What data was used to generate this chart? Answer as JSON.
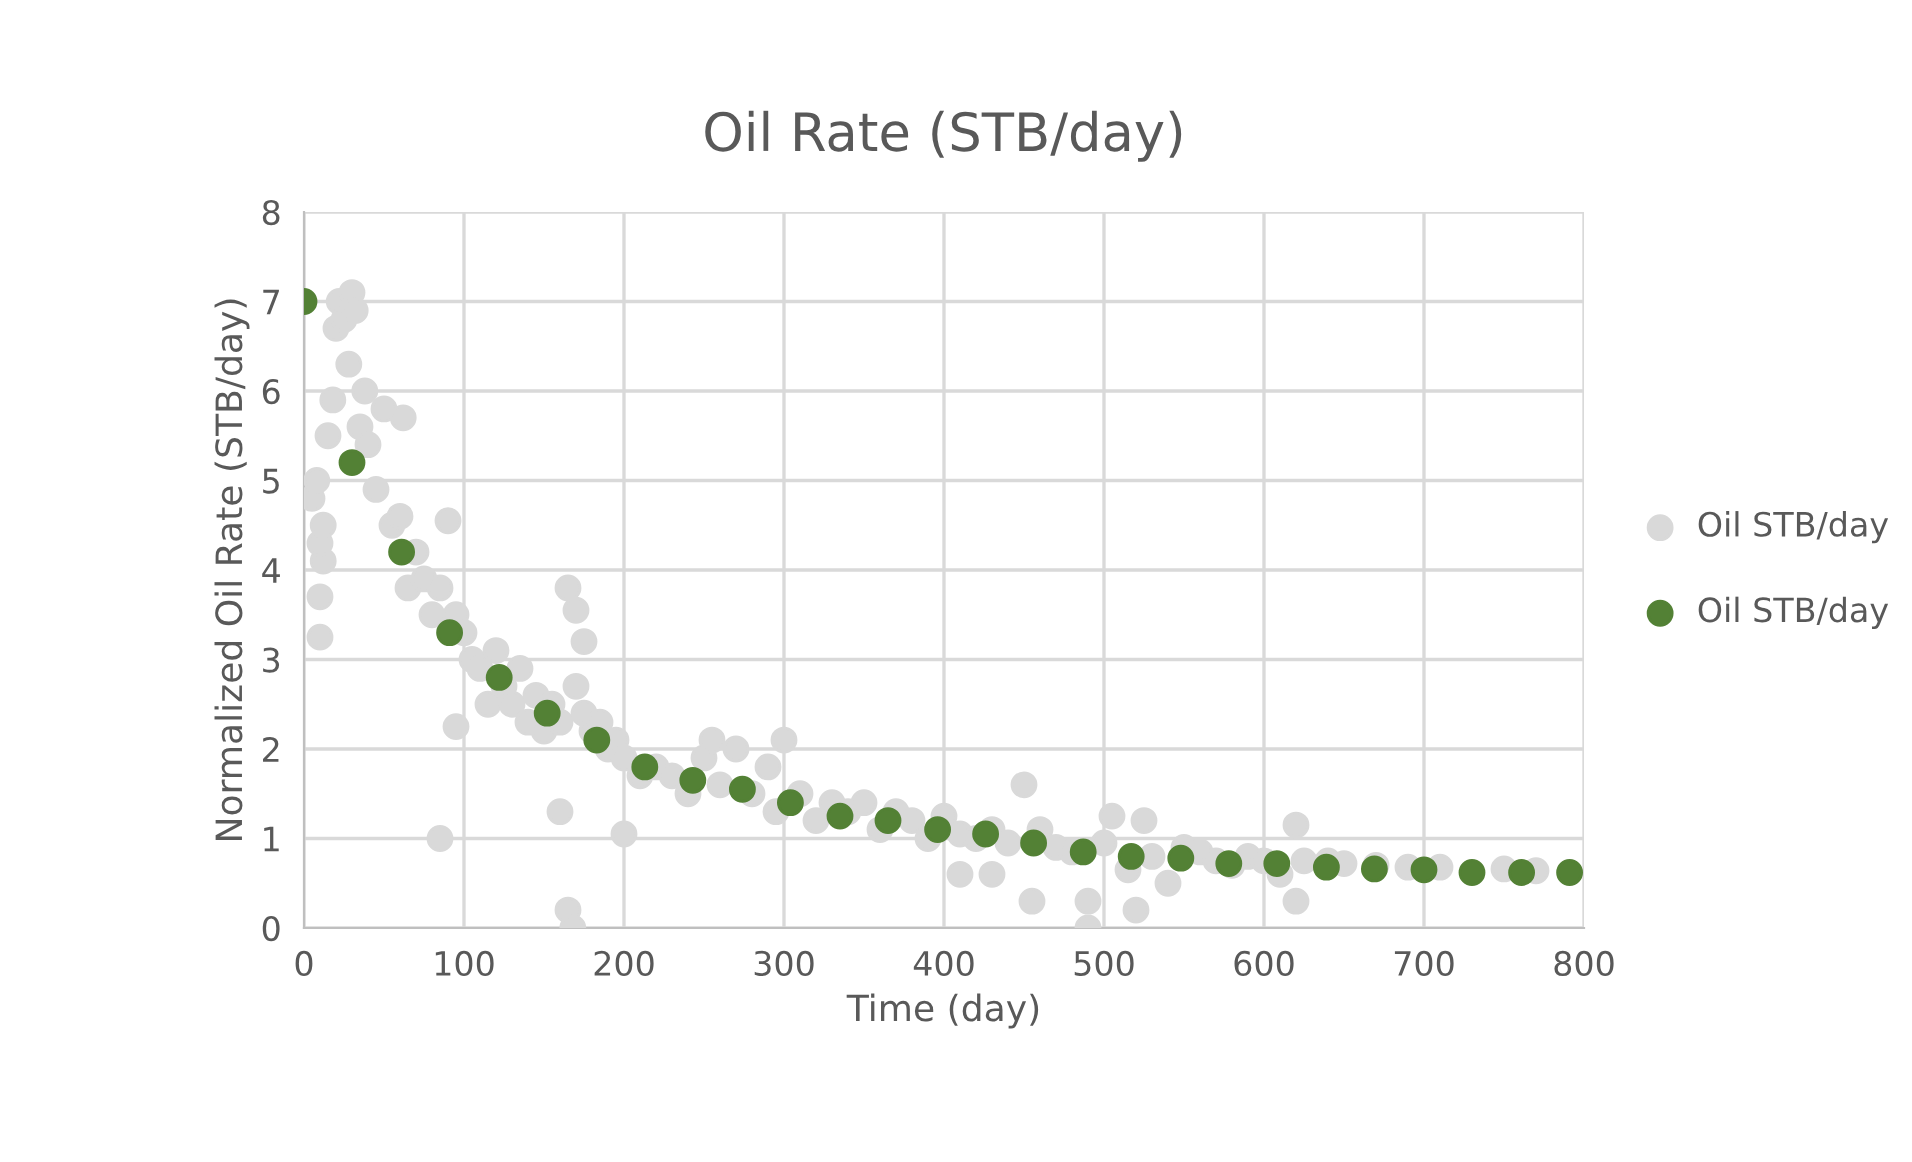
{
  "chart_data": {
    "type": "scatter",
    "title": "Oil Rate (STB/day)",
    "xlabel": "Time (day)",
    "ylabel": "Normalized Oil Rate (STB/day)",
    "xlim": [
      0,
      800
    ],
    "xticks": [
      0,
      100,
      200,
      300,
      400,
      500,
      600,
      700,
      800
    ],
    "ylim": [
      0,
      8
    ],
    "yticks": [
      0,
      1,
      2,
      3,
      4,
      5,
      6,
      7,
      8
    ],
    "grid": true,
    "legend": "right",
    "marker": "circle",
    "series": [
      {
        "name": "Oil STB/day",
        "color": "#d9d9d9",
        "x": [
          10,
          10,
          12,
          85,
          95,
          160,
          165,
          168,
          165,
          170,
          175,
          200,
          410,
          430,
          450,
          455,
          490,
          490,
          520,
          620,
          620,
          5,
          8,
          10,
          12,
          15,
          18,
          20,
          22,
          25,
          28,
          30,
          32,
          35,
          38,
          40,
          45,
          50,
          55,
          60,
          62,
          65,
          70,
          75,
          80,
          85,
          90,
          95,
          100,
          105,
          110,
          115,
          120,
          125,
          130,
          135,
          140,
          145,
          150,
          155,
          160,
          170,
          175,
          180,
          185,
          190,
          195,
          200,
          210,
          220,
          230,
          240,
          250,
          255,
          260,
          270,
          280,
          290,
          295,
          300,
          310,
          320,
          330,
          340,
          350,
          360,
          370,
          380,
          390,
          400,
          410,
          420,
          430,
          440,
          460,
          470,
          480,
          500,
          505,
          515,
          525,
          530,
          540,
          550,
          560,
          570,
          580,
          590,
          600,
          610,
          625,
          640,
          650,
          670,
          690,
          710,
          750,
          770
        ],
        "values": [
          3.25,
          3.7,
          4.1,
          1.0,
          2.25,
          1.3,
          0.2,
          0.0,
          3.8,
          3.55,
          3.2,
          1.05,
          0.6,
          0.6,
          1.6,
          0.3,
          0.3,
          0.0,
          0.2,
          1.15,
          0.3,
          4.8,
          5.0,
          4.3,
          4.5,
          5.5,
          5.9,
          6.7,
          7.0,
          6.8,
          6.3,
          7.1,
          6.9,
          5.6,
          6.0,
          5.4,
          4.9,
          5.8,
          4.5,
          4.6,
          5.7,
          3.8,
          4.2,
          3.9,
          3.5,
          3.8,
          4.55,
          3.5,
          3.3,
          3.0,
          2.9,
          2.5,
          3.1,
          2.7,
          2.5,
          2.9,
          2.3,
          2.6,
          2.2,
          2.5,
          2.3,
          2.7,
          2.4,
          2.2,
          2.3,
          2.0,
          2.1,
          1.9,
          1.7,
          1.8,
          1.7,
          1.5,
          1.9,
          2.1,
          1.6,
          2.0,
          1.5,
          1.8,
          1.3,
          2.1,
          1.5,
          1.2,
          1.4,
          1.3,
          1.4,
          1.1,
          1.3,
          1.2,
          1.0,
          1.25,
          1.05,
          1.0,
          1.1,
          0.95,
          1.1,
          0.9,
          0.85,
          0.95,
          1.25,
          0.65,
          1.2,
          0.8,
          0.5,
          0.9,
          0.85,
          0.75,
          0.7,
          0.8,
          0.75,
          0.6,
          0.75,
          0.75,
          0.72,
          0.7,
          0.68,
          0.68,
          0.66,
          0.64
        ]
      },
      {
        "name": "Oil STB/day",
        "color": "#538135",
        "x": [
          0,
          30,
          61,
          91,
          122,
          152,
          183,
          213,
          243,
          274,
          304,
          335,
          365,
          396,
          426,
          456,
          487,
          517,
          548,
          578,
          608,
          639,
          669,
          700,
          730,
          761,
          791
        ],
        "values": [
          7.0,
          5.2,
          4.2,
          3.3,
          2.8,
          2.4,
          2.1,
          1.8,
          1.65,
          1.55,
          1.4,
          1.25,
          1.2,
          1.1,
          1.05,
          0.95,
          0.85,
          0.8,
          0.78,
          0.72,
          0.72,
          0.68,
          0.66,
          0.65,
          0.62,
          0.62,
          0.62
        ]
      }
    ]
  }
}
